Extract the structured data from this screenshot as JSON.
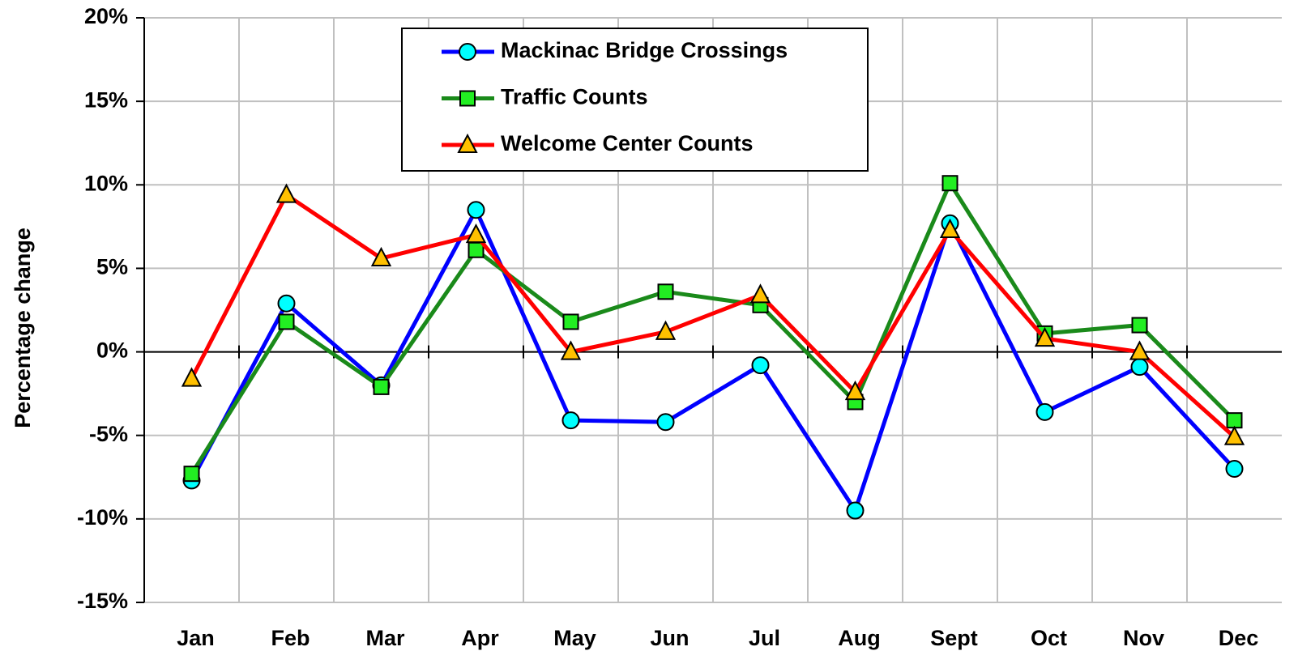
{
  "chart_data": {
    "type": "line",
    "y_label": "Percentage change",
    "categories": [
      "Jan",
      "Feb",
      "Mar",
      "Apr",
      "May",
      "Jun",
      "Jul",
      "Aug",
      "Sept",
      "Oct",
      "Nov",
      "Dec"
    ],
    "series": [
      {
        "name": "Mackinac Bridge Crossings",
        "color": "#0000ff",
        "marker": "circle",
        "marker_color": "#00ffff",
        "values": [
          -7.7,
          2.9,
          -2.0,
          8.5,
          -4.1,
          -4.2,
          -0.8,
          -9.5,
          7.7,
          -3.6,
          -0.9,
          -7.0
        ]
      },
      {
        "name": "Traffic Counts",
        "color": "#1a8a1a",
        "marker": "square",
        "marker_color": "#22ee22",
        "values": [
          -7.3,
          1.8,
          -2.1,
          6.1,
          1.8,
          3.6,
          2.8,
          -3.0,
          10.1,
          1.1,
          1.6,
          -4.1
        ]
      },
      {
        "name": "Welcome Center Counts",
        "color": "#ff0000",
        "marker": "triangle",
        "marker_color": "#ffc000",
        "values": [
          -1.6,
          9.4,
          5.6,
          7.0,
          0.0,
          1.2,
          3.4,
          -2.4,
          7.3,
          0.8,
          0.0,
          -5.1
        ]
      }
    ],
    "ylim": [
      -15,
      20
    ],
    "yticks": [
      {
        "value": -15,
        "label": "-15%"
      },
      {
        "value": -10,
        "label": "-10%"
      },
      {
        "value": -5,
        "label": "-5%"
      },
      {
        "value": 0,
        "label": "0%"
      },
      {
        "value": 5,
        "label": "5%"
      },
      {
        "value": 10,
        "label": "10%"
      },
      {
        "value": 15,
        "label": "15%"
      },
      {
        "value": 20,
        "label": "20%"
      }
    ],
    "grid": true
  }
}
